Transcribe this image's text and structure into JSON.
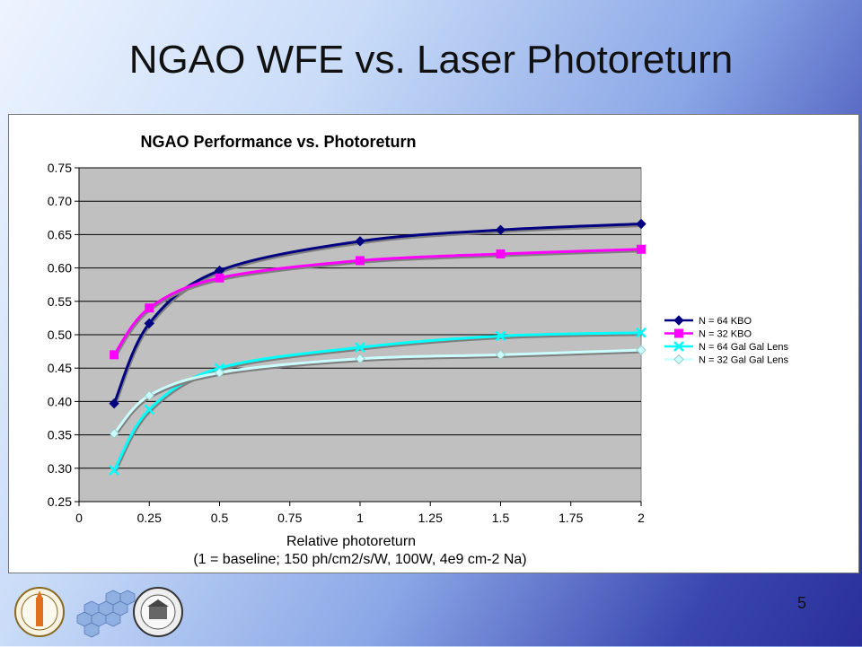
{
  "slide": {
    "title": "NGAO WFE vs. Laser Photoreturn",
    "page_number": "5"
  },
  "chart_data": {
    "type": "line",
    "title": "NGAO Performance vs. Photoreturn",
    "xlabel": "Relative photoreturn",
    "xlabel_sub": "(1 = baseline; 150 ph/cm2/s/W, 100W, 4e9 cm-2 Na)",
    "ylabel": "",
    "xlim": [
      0,
      2
    ],
    "ylim": [
      0.25,
      0.75
    ],
    "x_ticks": [
      0,
      0.25,
      0.5,
      0.75,
      1,
      1.25,
      1.5,
      1.75,
      2
    ],
    "x_tick_labels": [
      "0",
      "0.25",
      "0.5",
      "0.75",
      "1",
      "1.25",
      "1.5",
      "1.75",
      "2"
    ],
    "y_ticks": [
      0.25,
      0.3,
      0.35,
      0.4,
      0.45,
      0.5,
      0.55,
      0.6,
      0.65,
      0.7,
      0.75
    ],
    "y_tick_labels": [
      "0.25",
      "0.30",
      "0.35",
      "0.40",
      "0.45",
      "0.50",
      "0.55",
      "0.60",
      "0.65",
      "0.70",
      "0.75"
    ],
    "grid": "horizontal",
    "legend_position": "right",
    "x": [
      0.125,
      0.25,
      0.5,
      1,
      1.5,
      2
    ],
    "series": [
      {
        "name": "N = 64 KBO",
        "color": "#000080",
        "marker": "diamond",
        "values": [
          0.397,
          0.517,
          0.596,
          0.64,
          0.657,
          0.666
        ]
      },
      {
        "name": "N = 32 KBO",
        "color": "#ff00ff",
        "marker": "square",
        "values": [
          0.47,
          0.54,
          0.585,
          0.611,
          0.621,
          0.628
        ]
      },
      {
        "name": "N = 64 Gal Gal Lens",
        "color": "#00ffff",
        "marker": "x",
        "values": [
          0.297,
          0.388,
          0.45,
          0.481,
          0.498,
          0.503
        ]
      },
      {
        "name": "N = 32 Gal Gal Lens",
        "color": "#ccffff",
        "marker": "diamond",
        "values": [
          0.352,
          0.409,
          0.443,
          0.464,
          0.47,
          0.477
        ]
      }
    ]
  },
  "logos": {
    "left": "caltech-seal",
    "middle": "keck-mirror-segments",
    "right": "uc-seal"
  }
}
